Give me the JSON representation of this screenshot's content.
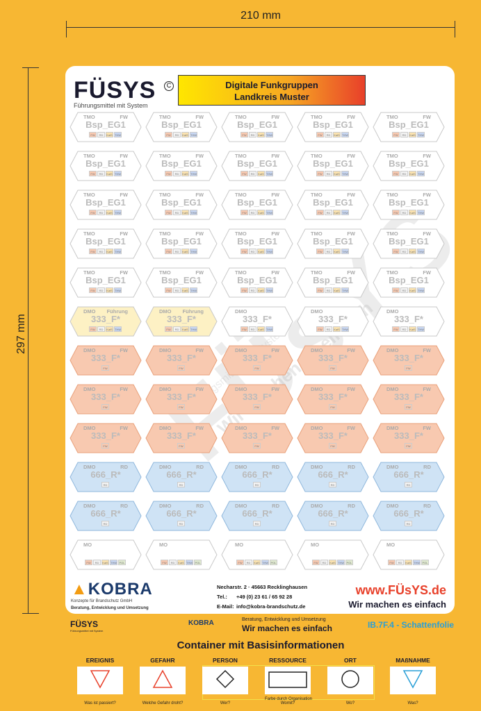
{
  "dimensions": {
    "width_label": "210 mm",
    "height_label": "297 mm"
  },
  "brand": {
    "name": "FÜSYS",
    "copyright": "C",
    "tagline": "Führungsmittel mit System"
  },
  "title": {
    "line1": "Digitale Funkgruppen",
    "line2": "Landkreis Muster"
  },
  "label_rows": [
    {
      "type": "tmo",
      "left": "TMO",
      "right": "FW",
      "main": "Bsp_EG1",
      "fill": "#ffffff",
      "stroke": "#c8c8c8",
      "boxes": [
        "FW",
        "RD",
        "KatS",
        "THW"
      ]
    },
    {
      "type": "tmo",
      "left": "TMO",
      "right": "FW",
      "main": "Bsp_EG1",
      "fill": "#ffffff",
      "stroke": "#c8c8c8",
      "boxes": [
        "FW",
        "RD",
        "KatS",
        "THW"
      ]
    },
    {
      "type": "tmo",
      "left": "TMO",
      "right": "FW",
      "main": "Bsp_EG1",
      "fill": "#ffffff",
      "stroke": "#c8c8c8",
      "boxes": [
        "FW",
        "RD",
        "KatS",
        "THW"
      ]
    },
    {
      "type": "tmo",
      "left": "TMO",
      "right": "FW",
      "main": "Bsp_EG1",
      "fill": "#ffffff",
      "stroke": "#c8c8c8",
      "boxes": [
        "FW",
        "RD",
        "KatS",
        "THW"
      ]
    },
    {
      "type": "tmo",
      "left": "TMO",
      "right": "FW",
      "main": "Bsp_EG1",
      "fill": "#ffffff",
      "stroke": "#c8c8c8",
      "boxes": [
        "FW",
        "RD",
        "KatS",
        "THW"
      ]
    },
    {
      "type": "dmo",
      "cells": [
        {
          "left": "DMO",
          "right": "Führung",
          "main": "333_F*",
          "fill": "#fdf1c4"
        },
        {
          "left": "DMO",
          "right": "Führung",
          "main": "333_F*",
          "fill": "#fdf1c4"
        },
        {
          "left": "DMO",
          "right": "",
          "main": "333_F*",
          "fill": "#ffffff"
        },
        {
          "left": "DMO",
          "right": "",
          "main": "333_F*",
          "fill": "#ffffff"
        },
        {
          "left": "DMO",
          "right": "",
          "main": "333_F*",
          "fill": "#ffffff"
        }
      ],
      "stroke": "#c8c8c8",
      "boxes": [
        "FW",
        "RD",
        "KatS",
        "THW"
      ]
    },
    {
      "type": "dmo-fw",
      "left": "DMO",
      "right": "FW",
      "main": "333_F*",
      "fill": "#f8c9b0",
      "stroke": "#e8a07a",
      "boxes": [
        "FW"
      ]
    },
    {
      "type": "dmo-fw",
      "left": "DMO",
      "right": "FW",
      "main": "333_F*",
      "fill": "#f8c9b0",
      "stroke": "#e8a07a",
      "boxes": [
        "FW"
      ]
    },
    {
      "type": "dmo-fw",
      "left": "DMO",
      "right": "FW",
      "main": "333_F*",
      "fill": "#f8c9b0",
      "stroke": "#e8a07a",
      "boxes": [
        "FW"
      ]
    },
    {
      "type": "dmo-rd",
      "left": "DMO",
      "right": "RD",
      "main": "666_R*",
      "fill": "#cfe3f5",
      "stroke": "#8fb7dc",
      "boxes": [
        "RD"
      ]
    },
    {
      "type": "dmo-rd",
      "left": "DMO",
      "right": "RD",
      "main": "666_R*",
      "fill": "#cfe3f5",
      "stroke": "#8fb7dc",
      "boxes": [
        "RD"
      ]
    },
    {
      "type": "mo",
      "left": "MO",
      "right": "",
      "main": "",
      "fill": "#ffffff",
      "stroke": "#c8c8c8",
      "boxes": [
        "FW",
        "RD",
        "KatS",
        "THW",
        "POL"
      ]
    }
  ],
  "watermark": {
    "big": "FÜsYS",
    "slogan": "Wir machen es einfach",
    "sub": "Führungsmittel mit System"
  },
  "kobra": {
    "name": "KOBRA",
    "sub": "Konzepte für Brandschutz GmbH",
    "sub2": "Beratung, Entwicklung und Umsetzung"
  },
  "address": {
    "street": "Necharstr. 2 · 45663 Recklinghausen",
    "tel_label": "Tel.:",
    "tel": "+49 (0) 23 61 / 65 92 28",
    "mail_label": "E-Mail:",
    "mail": "info@kobra-brandschutz.de"
  },
  "web": {
    "url": "www.FÜsYS.de",
    "slogan": "Wir machen es einfach"
  },
  "footer_strip": {
    "fuesys": "FÜSYS",
    "fuesys_sub": "Führungsmittel mit System",
    "kobra": "KOBRA",
    "beratung": "Beratung, Entwicklung und Umsetzung",
    "slogan": "Wir machen es einfach",
    "code": "IB.7F.4 - Schattenfolie"
  },
  "container": {
    "heading": "Container mit Basisinformationen",
    "organisation_label": "Farbe durch Organisation",
    "columns": [
      {
        "head": "EREIGNIS",
        "question": "Was ist passiert?",
        "shape": "triangle-down",
        "color": "#e8402a"
      },
      {
        "head": "GEFAHR",
        "question": "Welche Gefahr droht?",
        "shape": "triangle-up",
        "color": "#e8402a"
      },
      {
        "head": "PERSON",
        "question": "Wer?",
        "shape": "diamond",
        "color": "#222222"
      },
      {
        "head": "RESSOURCE",
        "question": "Womit?",
        "shape": "rectangle",
        "color": "#222222"
      },
      {
        "head": "ORT",
        "question": "Wo?",
        "shape": "circle",
        "color": "#222222"
      },
      {
        "head": "MAßNAHME",
        "question": "Was?",
        "shape": "triangle-down",
        "color": "#2a9fd6"
      }
    ]
  }
}
